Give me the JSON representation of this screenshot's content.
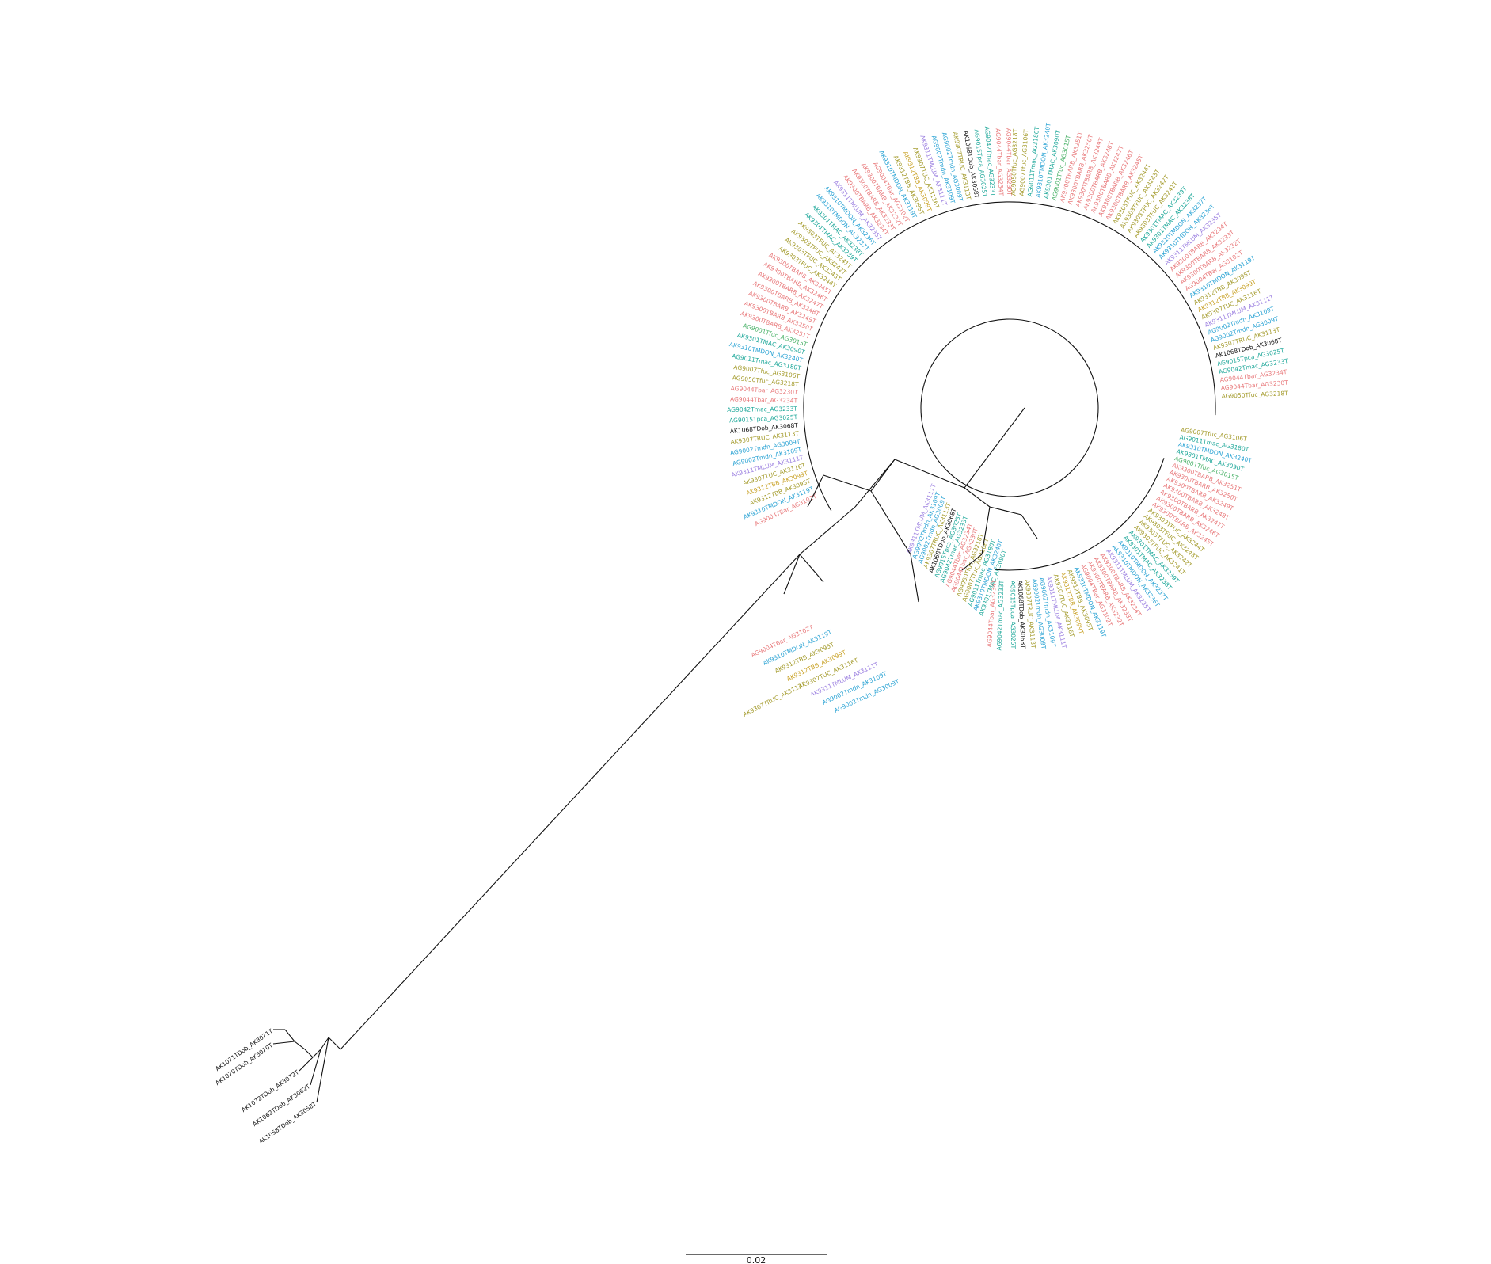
{
  "figure": {
    "type": "circular phylogenetic tree",
    "background": "#ffffff",
    "branch_color": "#111111"
  },
  "scale_bar": {
    "label": "0.02",
    "value": 0.02
  },
  "palette": {
    "red": "#e8787a",
    "olive": "#a39a2a",
    "blue": "#2aa3d4",
    "teal": "#1fa89a",
    "green": "#4db36b",
    "purple": "#9b7fe0",
    "pink": "#e066c3",
    "gold": "#c9a227",
    "black": "#111111"
  },
  "outgroup_labels": [
    "AK1071TDob_AK3071T",
    "AK1070TDob_AK3070T",
    "AK1072TDob_AK3072T",
    "AK1062TDob_AK3062T",
    "AK1058TDob_AK3058T"
  ],
  "legible_labels": [
    {
      "text": "AG9004TBar_AG3102T",
      "color": "red"
    },
    {
      "text": "AK9310TMDON_AK3119T",
      "color": "blue"
    },
    {
      "text": "AK9312TBB_AK3095T",
      "color": "olive"
    },
    {
      "text": "AK9312TBB_AK3099T",
      "color": "gold"
    },
    {
      "text": "AK9307TUC_AK3116T",
      "color": "olive"
    },
    {
      "text": "AK9311TMLUM_AK3111T",
      "color": "purple"
    },
    {
      "text": "AG9002Tmdn_AK3109T",
      "color": "blue"
    },
    {
      "text": "AG9002Tmdn_AG3009T",
      "color": "blue"
    },
    {
      "text": "AK9307TRUC_AK3113T",
      "color": "olive"
    },
    {
      "text": "AK1068TDob_AK3068T",
      "color": "black"
    },
    {
      "text": "AG9015Tpca_AG3025T",
      "color": "teal"
    },
    {
      "text": "AG9042Tmac_AG3233T",
      "color": "teal"
    },
    {
      "text": "AG9044Tbar_AG3234T",
      "color": "red"
    },
    {
      "text": "AG9044Tbar_AG3230T",
      "color": "red"
    },
    {
      "text": "AG9050Tfuc_AG3218T",
      "color": "olive"
    },
    {
      "text": "AG9007Tfuc_AG3106T",
      "color": "olive"
    },
    {
      "text": "AG9011Tmac_AG3180T",
      "color": "teal"
    },
    {
      "text": "AK9310TMDON_AK3240T",
      "color": "blue"
    },
    {
      "text": "AK9301TMAC_AK3090T",
      "color": "teal"
    },
    {
      "text": "AG9001Tfuc_AG3015T",
      "color": "green"
    },
    {
      "text": "AK9300TBARB_AK3251T",
      "color": "red"
    },
    {
      "text": "AK9300TBARB_AK3250T",
      "color": "red"
    },
    {
      "text": "AK9300TBARB_AK3249T",
      "color": "red"
    },
    {
      "text": "AK9300TBARB_AK3248T",
      "color": "red"
    },
    {
      "text": "AK9300TBARB_AK3247T",
      "color": "red"
    },
    {
      "text": "AK9300TBARB_AK3246T",
      "color": "red"
    },
    {
      "text": "AK9300TBARB_AK3245T",
      "color": "red"
    },
    {
      "text": "AK9303TFUC_AK3244T",
      "color": "olive"
    },
    {
      "text": "AK9303TFUC_AK3243T",
      "color": "olive"
    },
    {
      "text": "AK9303TFUC_AK3242T",
      "color": "olive"
    },
    {
      "text": "AK9303TFUC_AK3241T",
      "color": "olive"
    },
    {
      "text": "AK9301TMAC_AK3239T",
      "color": "teal"
    },
    {
      "text": "AK9301TMAC_AK3238T",
      "color": "teal"
    },
    {
      "text": "AK9310TMDON_AK3237T",
      "color": "blue"
    },
    {
      "text": "AK9310TMDON_AK3236T",
      "color": "blue"
    },
    {
      "text": "AK9311TMLUM_AK3235T",
      "color": "purple"
    },
    {
      "text": "AK9300TBARB_AK3234T",
      "color": "red"
    },
    {
      "text": "AK9300TBARB_AK3233T",
      "color": "red"
    },
    {
      "text": "AK9300TBARB_AK3232T",
      "color": "red"
    }
  ]
}
